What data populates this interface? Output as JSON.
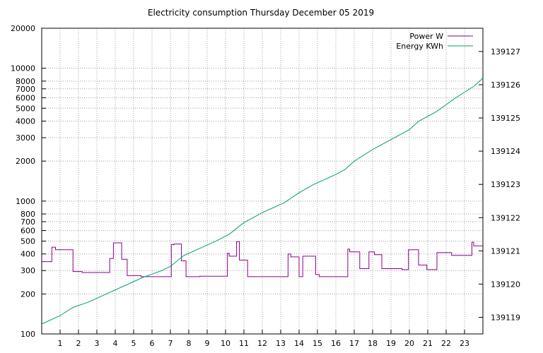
{
  "chart_data": {
    "type": "line",
    "title": "Electricity consumption Thursday December 05 2019",
    "grid": true,
    "legend_position": "top-right",
    "x_ticks": [
      1,
      2,
      3,
      4,
      5,
      6,
      7,
      8,
      9,
      10,
      11,
      12,
      13,
      14,
      15,
      16,
      17,
      18,
      19,
      20,
      21,
      22,
      23
    ],
    "xlim": [
      0,
      24
    ],
    "y_left": {
      "scale": "log",
      "ylim": [
        100,
        20000
      ],
      "ticks": [
        100,
        200,
        300,
        400,
        500,
        600,
        700,
        800,
        1000,
        2000,
        3000,
        4000,
        5000,
        6000,
        7000,
        8000,
        10000,
        20000
      ]
    },
    "y_right": {
      "ylim": [
        139118.5,
        139127.7
      ],
      "ticks": [
        139119,
        139120,
        139121,
        139122,
        139123,
        139124,
        139125,
        139126,
        139127
      ]
    },
    "series": [
      {
        "name": "Power W",
        "axis": "left",
        "color": "#8b008b",
        "step": true,
        "x": [
          0,
          0.55,
          0.55,
          0.75,
          0.75,
          1.7,
          1.7,
          2.2,
          2.2,
          3.7,
          3.7,
          3.9,
          3.9,
          4.35,
          4.35,
          4.65,
          4.65,
          5.4,
          5.4,
          7.05,
          7.05,
          7.2,
          7.2,
          7.6,
          7.6,
          7.85,
          7.85,
          8.6,
          8.6,
          10.1,
          10.1,
          10.2,
          10.2,
          10.6,
          10.6,
          10.75,
          10.75,
          11.2,
          11.2,
          13.4,
          13.4,
          13.55,
          13.55,
          14.0,
          14.0,
          14.2,
          14.2,
          14.9,
          14.9,
          15.1,
          15.1,
          16.65,
          16.65,
          16.75,
          16.75,
          17.3,
          17.3,
          17.8,
          17.8,
          18.1,
          18.1,
          18.5,
          18.5,
          19.6,
          19.6,
          19.95,
          19.95,
          20.5,
          20.5,
          20.95,
          20.95,
          21.5,
          21.5,
          22.3,
          22.3,
          23.4,
          23.4,
          23.5,
          23.5,
          24
        ],
        "values": [
          350,
          350,
          450,
          450,
          430,
          430,
          295,
          295,
          290,
          290,
          370,
          370,
          485,
          485,
          365,
          365,
          275,
          275,
          270,
          270,
          470,
          470,
          475,
          475,
          355,
          355,
          270,
          270,
          272,
          272,
          405,
          405,
          385,
          385,
          495,
          495,
          360,
          360,
          270,
          270,
          400,
          400,
          380,
          380,
          270,
          270,
          385,
          385,
          280,
          280,
          270,
          270,
          435,
          435,
          415,
          415,
          310,
          310,
          415,
          415,
          395,
          395,
          310,
          310,
          305,
          305,
          430,
          430,
          330,
          330,
          305,
          305,
          410,
          410,
          390,
          390,
          490,
          490,
          460,
          460
        ]
      },
      {
        "name": "Energy KWh",
        "axis": "right",
        "color": "#009e73",
        "step": false,
        "x": [
          0,
          1,
          1.7,
          2.5,
          3.5,
          4.5,
          5.5,
          6.5,
          7,
          7.7,
          8.5,
          9.5,
          10.2,
          11,
          12,
          13.2,
          14,
          14.8,
          16,
          16.5,
          17,
          18,
          19,
          20,
          20.5,
          21.5,
          22.5,
          23.5,
          24
        ],
        "values": [
          139118.8,
          139119.05,
          139119.3,
          139119.45,
          139119.7,
          139119.95,
          139120.2,
          139120.4,
          139120.53,
          139120.85,
          139121.05,
          139121.3,
          139121.5,
          139121.85,
          139122.15,
          139122.45,
          139122.75,
          139123.0,
          139123.3,
          139123.45,
          139123.7,
          139124.05,
          139124.35,
          139124.65,
          139124.9,
          139125.2,
          139125.6,
          139125.95,
          139126.2
        ]
      }
    ]
  }
}
